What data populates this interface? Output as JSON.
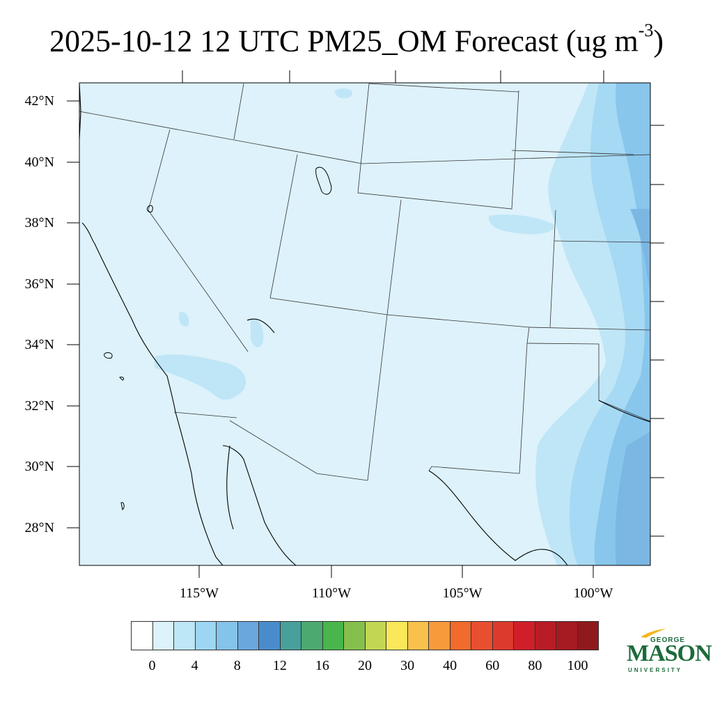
{
  "title": {
    "main": "2025-10-12 12 UTC PM25_OM Forecast (ug m",
    "superscript": "-3",
    "close": ")"
  },
  "map": {
    "lat_labels": [
      "42°N",
      "40°N",
      "38°N",
      "36°N",
      "34°N",
      "32°N",
      "30°N",
      "28°N"
    ],
    "lon_labels": [
      "115°W",
      "110°W",
      "105°W",
      "100°W"
    ],
    "colors": {
      "background": "#ddf2fb",
      "light": "#bfe6f7",
      "mid": "#9fd6f2",
      "dark": "#84c3ea",
      "darker": "#6aa7dd",
      "border": "#000000"
    }
  },
  "colorbar": {
    "colors": [
      "#ffffff",
      "#ddf2fb",
      "#bde6f7",
      "#9dd6f3",
      "#84c3ea",
      "#6aa7dd",
      "#4a8ccb",
      "#47a09a",
      "#4caa6e",
      "#48b64c",
      "#85c04c",
      "#c3d653",
      "#f8e85a",
      "#f8c14c",
      "#f69a3c",
      "#f26a2c",
      "#e84f30",
      "#dc3a2c",
      "#d01f2a",
      "#b81c26",
      "#a61a22",
      "#8e1a1d"
    ],
    "tick_labels": [
      "0",
      "4",
      "8",
      "12",
      "16",
      "20",
      "30",
      "40",
      "60",
      "80",
      "100"
    ]
  },
  "logo": {
    "line1": "GEORGE",
    "line2": "MASON",
    "line3": "UNIVERSITY"
  }
}
